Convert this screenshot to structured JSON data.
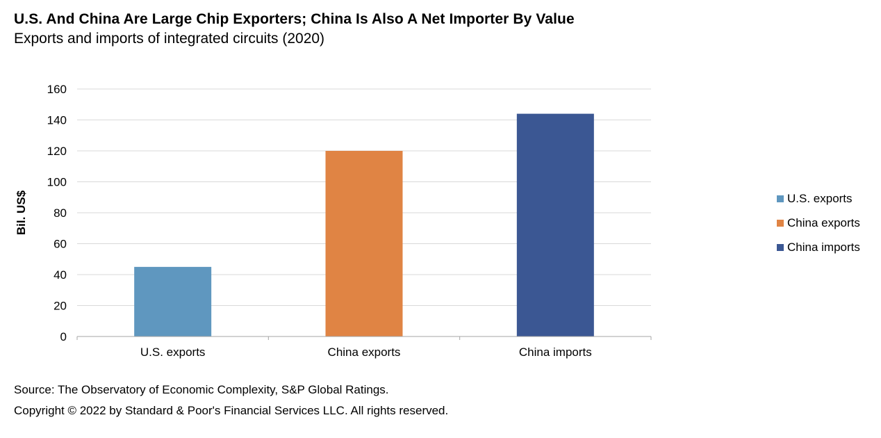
{
  "header": {
    "title": "U.S. And China Are Large Chip Exporters;  China Is Also A Net Importer By Value",
    "subtitle": "Exports and imports of integrated circuits (2020)"
  },
  "chart_data": {
    "type": "bar",
    "categories": [
      "U.S. exports",
      "China exports",
      "China imports"
    ],
    "values": [
      45,
      120,
      144
    ],
    "colors": [
      "#5f97bf",
      "#e08444",
      "#3b5793"
    ],
    "title": "Exports and imports of integrated circuits (2020)",
    "xlabel": "",
    "ylabel": "Bil. US$",
    "ylim": [
      0,
      160
    ],
    "yticks": [
      0,
      20,
      40,
      60,
      80,
      100,
      120,
      140,
      160
    ],
    "grid": true,
    "legend": {
      "position": "right",
      "entries": [
        "U.S. exports",
        "China exports",
        "China imports"
      ]
    }
  },
  "footer": {
    "source": "Source: The Observatory of Economic Complexity, S&P Global Ratings.",
    "copyright": "Copyright © 2022 by Standard & Poor's Financial Services LLC. All rights reserved."
  },
  "colors": {
    "gridline": "#d9d9d9",
    "axis": "#a6a6a6"
  }
}
